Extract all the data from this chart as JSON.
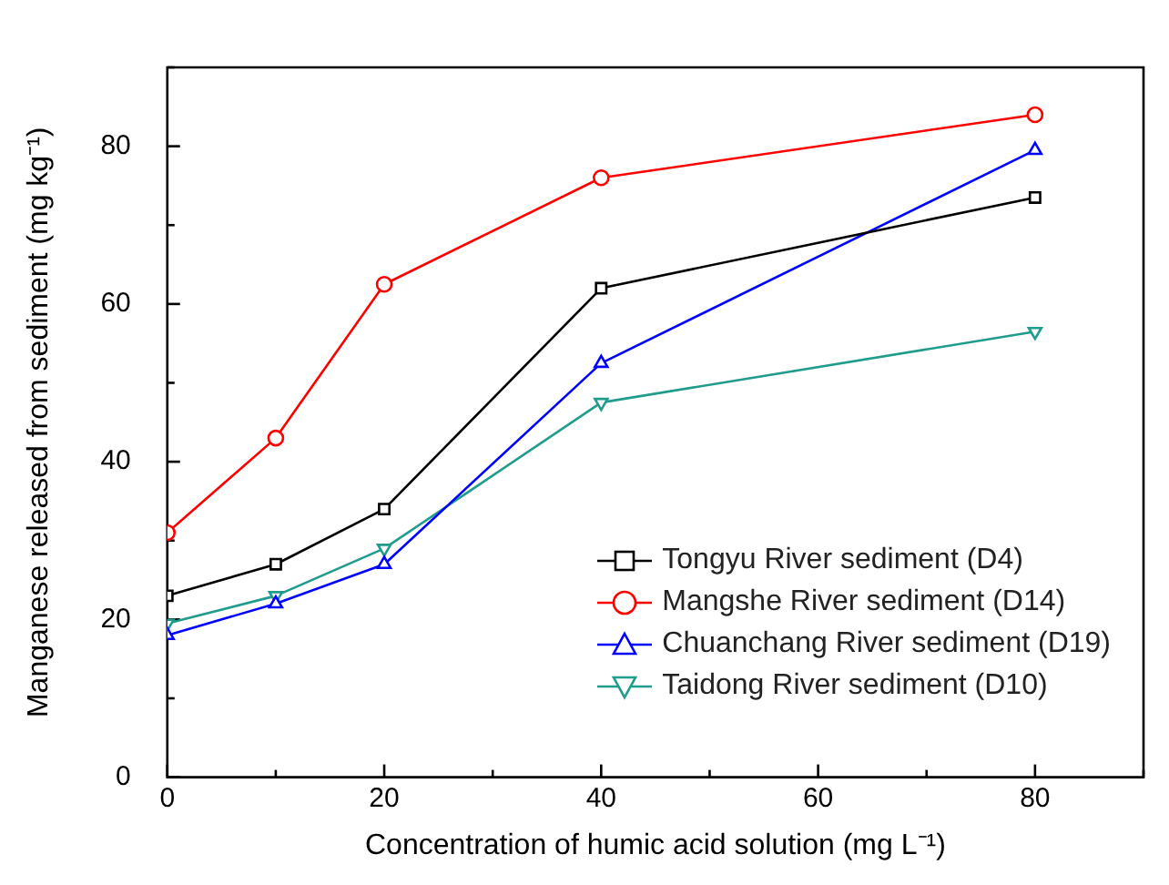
{
  "chart_data": {
    "type": "line",
    "xlabel": "Concentration of humic acid solution (mg L⁻¹)",
    "ylabel": "Manganese released from sediment (mg kg⁻¹)",
    "x": [
      0,
      10,
      20,
      40,
      80
    ],
    "series": [
      {
        "name": "Tongyu River sediment (D4)",
        "color": "#000000",
        "marker": "square",
        "values": [
          23,
          27,
          34,
          62,
          73.5
        ]
      },
      {
        "name": "Mangshe River sediment (D14)",
        "color": "#ff0000",
        "marker": "circle",
        "values": [
          31,
          43,
          62.5,
          76,
          84
        ]
      },
      {
        "name": "Chuanchang River sediment (D19)",
        "color": "#0000ff",
        "marker": "triangle",
        "values": [
          18,
          22,
          27,
          52.5,
          79.5
        ]
      },
      {
        "name": "Taidong River sediment (D10)",
        "color": "#1f9c8c",
        "marker": "triangle-down",
        "values": [
          19.5,
          23,
          29,
          47.5,
          56.5
        ]
      }
    ],
    "xlim": [
      0,
      90
    ],
    "xticks": [
      0,
      {
        "value": 10,
        "label": null
      },
      20,
      {
        "value": 30,
        "label": null
      },
      40,
      {
        "value": 50,
        "label": null
      },
      60,
      {
        "value": 70,
        "label": null
      },
      80,
      {
        "value": 90,
        "label": null
      }
    ],
    "ylim": [
      0,
      90
    ],
    "yticks": [
      0,
      {
        "value": 10,
        "label": null
      },
      20,
      {
        "value": 30,
        "label": null
      },
      40,
      {
        "value": 50,
        "label": null
      },
      60,
      {
        "value": 70,
        "label": null
      },
      80,
      {
        "value": 90,
        "label": null
      }
    ],
    "grid": false,
    "legend": "bottom right",
    "line_style": "solid"
  }
}
